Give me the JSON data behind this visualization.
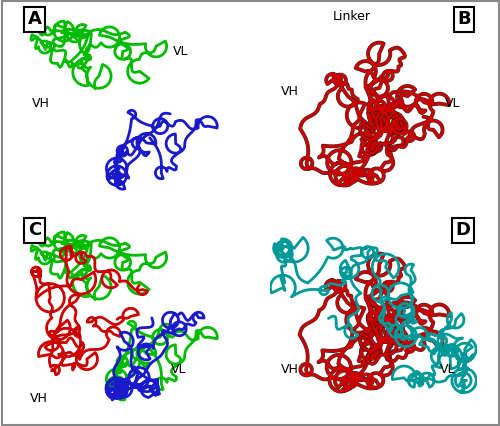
{
  "figure_size": [
    5.0,
    4.26
  ],
  "dpi": 100,
  "background_color": "#ffffff",
  "panel_label_fontsize": 13,
  "annotation_fontsize": 9,
  "panel_A": {
    "label": "A",
    "vh_label": "VH",
    "vl_label": "VL",
    "vh_color": "#00bb00",
    "vl_color": "#1a1acc",
    "vh_lw": 2.0,
    "vl_lw": 2.0
  },
  "panel_B": {
    "label": "B",
    "vh_label": "VH",
    "vl_label": "VL",
    "linker_label": "Linker",
    "chain_color": "#cc0000",
    "dark_color": "#111111",
    "lw": 2.0
  },
  "panel_C": {
    "label": "C",
    "vh_label": "VH",
    "vl_label": "VL",
    "green_color": "#00bb00",
    "red_color": "#cc0000",
    "blue_color": "#1a1acc",
    "lw": 2.0
  },
  "panel_D": {
    "label": "D",
    "vh_label": "VH",
    "vl_label": "VL",
    "red_color": "#cc0000",
    "cyan_color": "#009999",
    "dark_color": "#111111",
    "lw": 2.0
  }
}
